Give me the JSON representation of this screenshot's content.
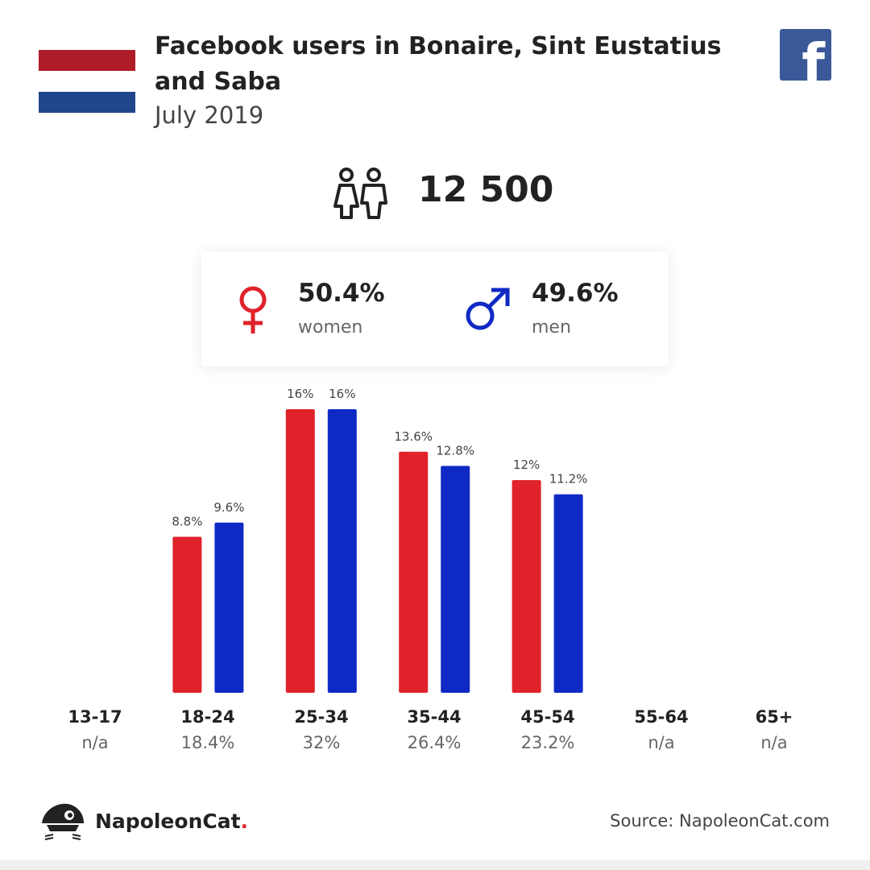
{
  "header": {
    "title": "Facebook users in Bonaire, Sint Eustatius and Saba",
    "subtitle": "July 2019"
  },
  "flag": {
    "colors": [
      "#ae1c28",
      "#ffffff",
      "#21468b"
    ]
  },
  "icons": {
    "brand": "facebook-icon",
    "users": "users-icon",
    "female": "female-symbol-icon",
    "male": "male-symbol-icon",
    "logo": "napoleoncat-logo-icon"
  },
  "total": {
    "value": "12 500"
  },
  "gender": {
    "women": {
      "percent": "50.4%",
      "label": "women",
      "color": "#e0222a"
    },
    "men": {
      "percent": "49.6%",
      "label": "men",
      "color": "#0f2ac4"
    }
  },
  "colors": {
    "women": "#e0222a",
    "men": "#0f2ac4",
    "facebook": "#3b5998"
  },
  "chart_data": {
    "type": "bar",
    "categories": [
      "13-17",
      "18-24",
      "25-34",
      "35-44",
      "45-54",
      "55-64",
      "65+"
    ],
    "category_totals": [
      "n/a",
      "18.4%",
      "32%",
      "26.4%",
      "23.2%",
      "n/a",
      "n/a"
    ],
    "series": [
      {
        "values": [
          null,
          8.8,
          16,
          13.6,
          12,
          null,
          null
        ],
        "labels": [
          "",
          "8.8%",
          "16%",
          "13.6%",
          "12%",
          "",
          ""
        ],
        "color": "#e0222a"
      },
      {
        "values": [
          null,
          9.6,
          16,
          12.8,
          11.2,
          null,
          null
        ],
        "labels": [
          "",
          "9.6%",
          "16%",
          "12.8%",
          "11.2%",
          "",
          ""
        ],
        "color": "#0f2ac4"
      }
    ],
    "ylim": [
      0,
      16
    ],
    "grid": false
  },
  "footer": {
    "brand_name": "NapoleonCat",
    "brand_dot": ".",
    "source": "Source: NapoleonCat.com"
  }
}
